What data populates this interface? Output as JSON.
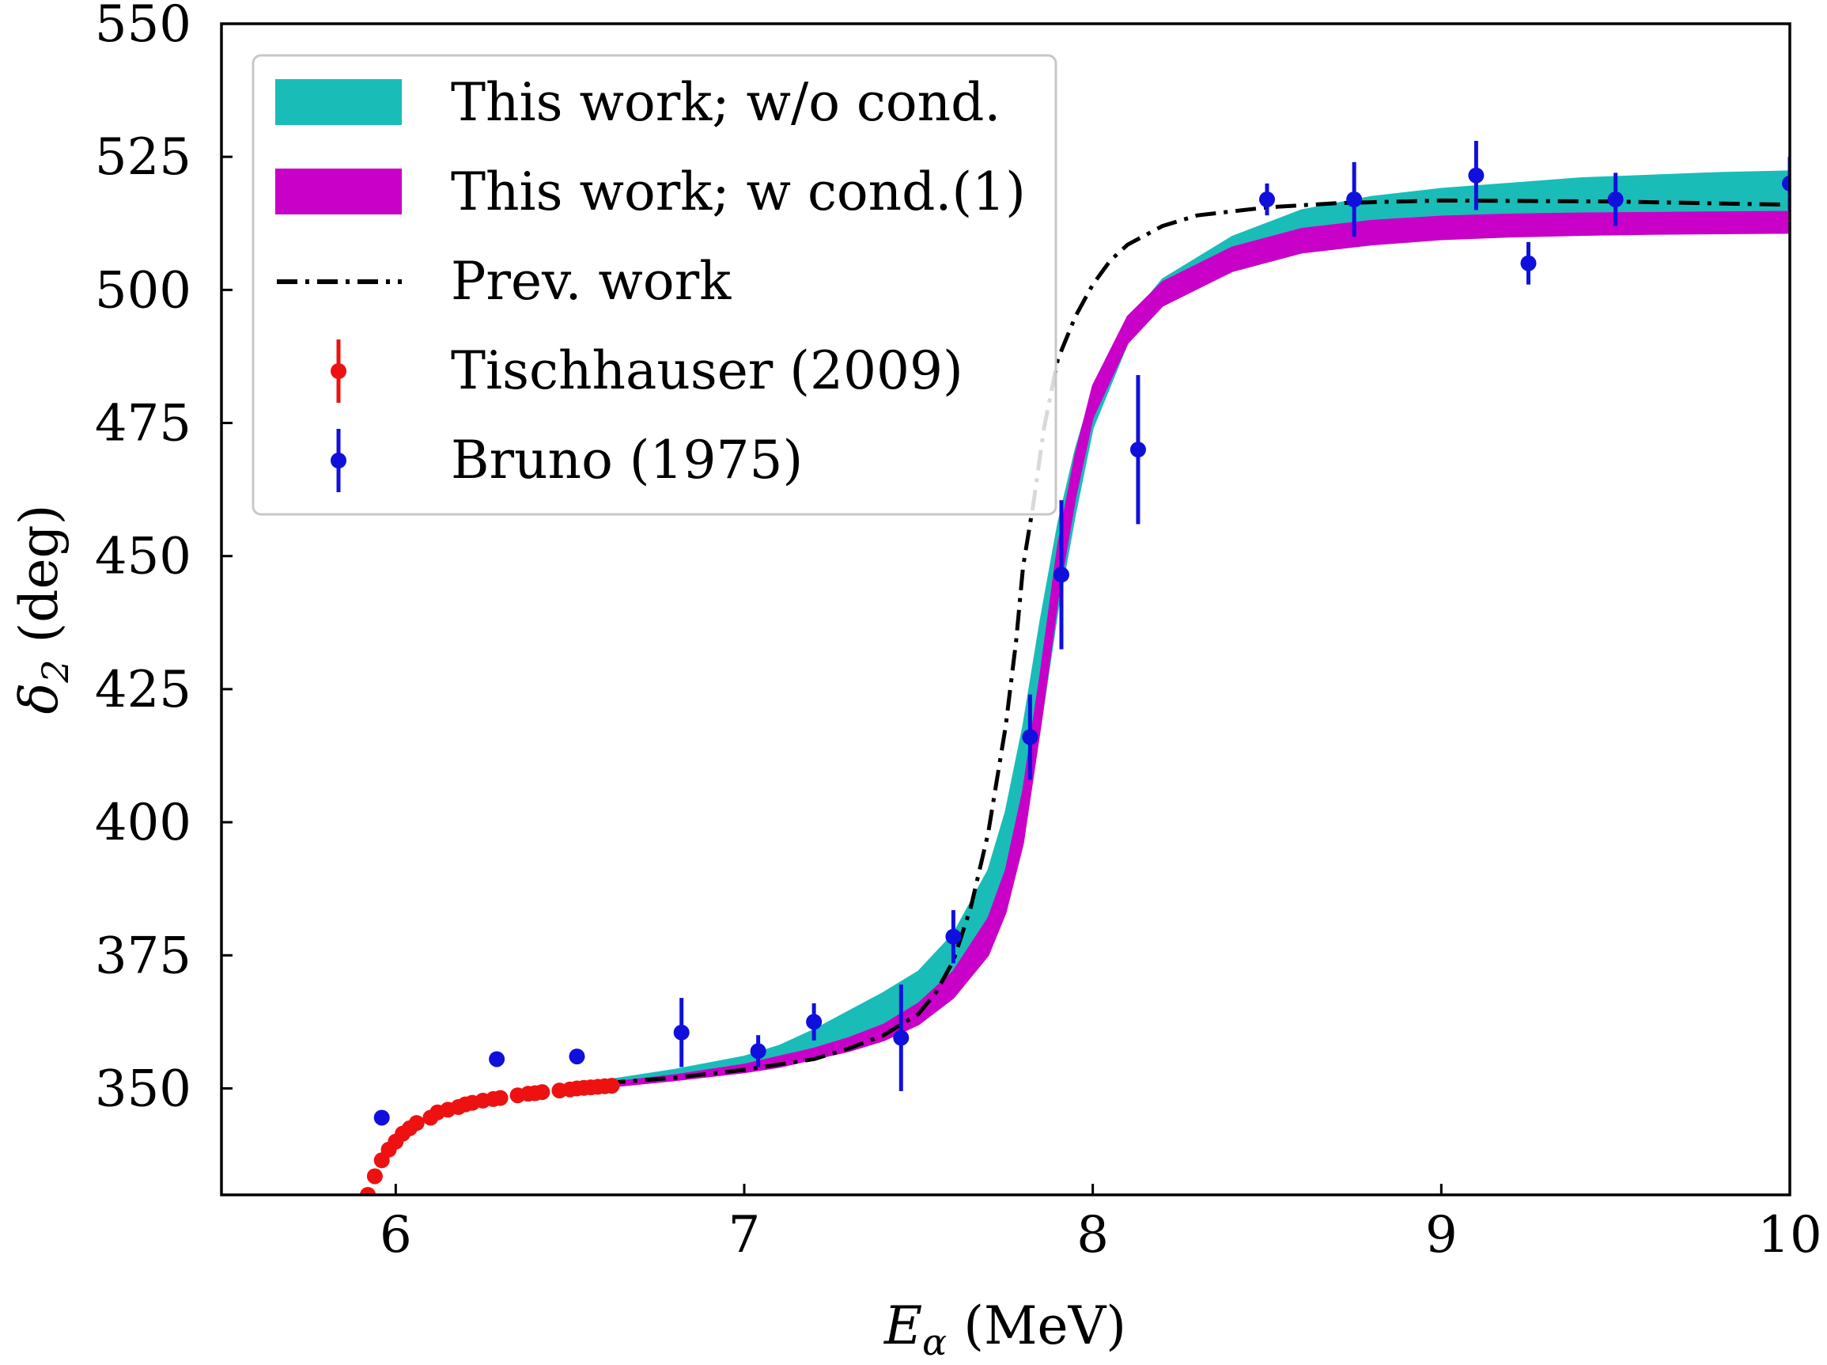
{
  "chart_data": {
    "type": "line",
    "xlabel": "E_α (MeV)",
    "xlabel_main": "E",
    "xlabel_sub": "α",
    "xlabel_unit": " (MeV)",
    "ylabel": "δ_2 (deg)",
    "ylabel_main": "δ",
    "ylabel_sub": "2",
    "ylabel_unit": " (deg)",
    "xlim": [
      5.5,
      10
    ],
    "ylim": [
      330,
      550
    ],
    "xticks": [
      6,
      7,
      8,
      9,
      10
    ],
    "yticks": [
      350,
      375,
      400,
      425,
      450,
      475,
      500,
      525,
      550
    ],
    "grid": false,
    "legend_position": "top-left",
    "legend": [
      {
        "label": "This work; w/o cond.",
        "kind": "band",
        "color": "#1abcb8"
      },
      {
        "label": "This work; w cond.(1)",
        "kind": "band",
        "color": "#c800c8"
      },
      {
        "label": "Prev. work",
        "kind": "dashdot",
        "color": "#000000"
      },
      {
        "label": "Tischhauser (2009)",
        "kind": "errorbar",
        "color": "#ee1111"
      },
      {
        "label": "Bruno (1975)",
        "kind": "errorbar",
        "color": "#1010dd"
      }
    ],
    "series": [
      {
        "name": "This work; w/o cond.",
        "kind": "band",
        "color": "#1abcb8",
        "x": [
          6.6,
          6.8,
          7.0,
          7.1,
          7.2,
          7.3,
          7.4,
          7.5,
          7.6,
          7.7,
          7.75,
          7.8,
          7.85,
          7.9,
          7.95,
          8.0,
          8.1,
          8.2,
          8.4,
          8.6,
          8.8,
          9.0,
          9.2,
          9.4,
          9.6,
          9.8,
          10.0
        ],
        "lower": [
          350.5,
          352,
          353.5,
          354.5,
          356,
          358,
          360.5,
          364,
          369,
          378,
          386,
          398,
          418,
          440,
          458,
          474,
          490,
          498,
          506,
          510,
          511.5,
          512.5,
          513,
          513.3,
          513.5,
          513.6,
          513.7
        ],
        "upper": [
          351.5,
          353.5,
          356,
          358,
          361,
          364.5,
          368,
          372,
          379,
          391,
          402,
          418,
          438,
          456,
          470,
          481,
          494,
          502,
          510,
          515,
          517.5,
          519,
          520,
          521,
          521.5,
          522,
          522.3
        ]
      },
      {
        "name": "This work; w cond.(1)",
        "kind": "band",
        "color": "#c800c8",
        "x": [
          6.6,
          6.8,
          7.0,
          7.1,
          7.2,
          7.3,
          7.4,
          7.5,
          7.6,
          7.7,
          7.75,
          7.8,
          7.85,
          7.9,
          7.95,
          8.0,
          8.1,
          8.2,
          8.4,
          8.6,
          8.8,
          9.0,
          9.2,
          9.4,
          9.6,
          9.8,
          10.0
        ],
        "lower": [
          350.2,
          351.5,
          353,
          354,
          355.5,
          357,
          359,
          362,
          367,
          375,
          383,
          396,
          418,
          442,
          461,
          476,
          490,
          497,
          503.5,
          507,
          508.5,
          509.5,
          510,
          510.3,
          510.5,
          510.6,
          510.7
        ],
        "upper": [
          351,
          352.5,
          354.5,
          356,
          357.5,
          359.5,
          362,
          366,
          372,
          382,
          391,
          406,
          428,
          452,
          469,
          482,
          495,
          501.5,
          508,
          511.5,
          513,
          513.8,
          514.2,
          514.4,
          514.5,
          514.6,
          514.7
        ]
      },
      {
        "name": "Prev. work",
        "kind": "dashdot",
        "color": "#000000",
        "x": [
          6.6,
          6.8,
          7.0,
          7.2,
          7.3,
          7.4,
          7.5,
          7.55,
          7.6,
          7.65,
          7.7,
          7.75,
          7.78,
          7.8,
          7.83,
          7.86,
          7.9,
          7.95,
          8.0,
          8.05,
          8.1,
          8.2,
          8.3,
          8.5,
          8.7,
          9.0,
          9.5,
          10.0
        ],
        "y": [
          351,
          352,
          353.5,
          355.5,
          357.5,
          360,
          364,
          368,
          374,
          384,
          398,
          418,
          434,
          448,
          460,
          474,
          487,
          495,
          501,
          505.5,
          508.5,
          512,
          514,
          515.5,
          516.3,
          516.8,
          516.6,
          516
        ]
      },
      {
        "name": "Tischhauser (2009)",
        "kind": "errorbar",
        "color": "#ee1111",
        "x": [
          5.92,
          5.94,
          5.96,
          5.98,
          6.0,
          6.02,
          6.04,
          6.06,
          6.1,
          6.12,
          6.15,
          6.18,
          6.2,
          6.22,
          6.25,
          6.28,
          6.3,
          6.35,
          6.38,
          6.4,
          6.42,
          6.47,
          6.5,
          6.52,
          6.54,
          6.56,
          6.58,
          6.6,
          6.62
        ],
        "y": [
          330,
          333.5,
          336.5,
          338.5,
          340,
          341.5,
          342.5,
          343.5,
          344.5,
          345.5,
          346,
          346.5,
          347,
          347.3,
          347.7,
          348,
          348.2,
          348.7,
          349,
          349.1,
          349.3,
          349.6,
          349.8,
          350,
          350.1,
          350.2,
          350.3,
          350.4,
          350.5
        ],
        "err": [
          1,
          1,
          1,
          1,
          1,
          1,
          1,
          1,
          1,
          1,
          1,
          1,
          1,
          1,
          1,
          1,
          1,
          1,
          1,
          1,
          1,
          1,
          1,
          1,
          1,
          1,
          1,
          1,
          1
        ]
      },
      {
        "name": "Bruno (1975)",
        "kind": "errorbar",
        "color": "#1010dd",
        "x": [
          5.96,
          6.29,
          6.52,
          6.82,
          7.04,
          7.2,
          7.45,
          7.6,
          7.82,
          7.91,
          8.13,
          8.5,
          8.75,
          9.1,
          9.25,
          9.5,
          10.0
        ],
        "y": [
          344.5,
          355.5,
          356,
          360.5,
          357,
          362.5,
          359.5,
          378.5,
          416,
          446.5,
          470,
          517,
          517,
          521.5,
          505,
          517,
          520
        ],
        "err": [
          0,
          0,
          0,
          6.5,
          3,
          3.5,
          10,
          5,
          8,
          14,
          14,
          3,
          7,
          6.5,
          4,
          5,
          5
        ]
      }
    ]
  }
}
